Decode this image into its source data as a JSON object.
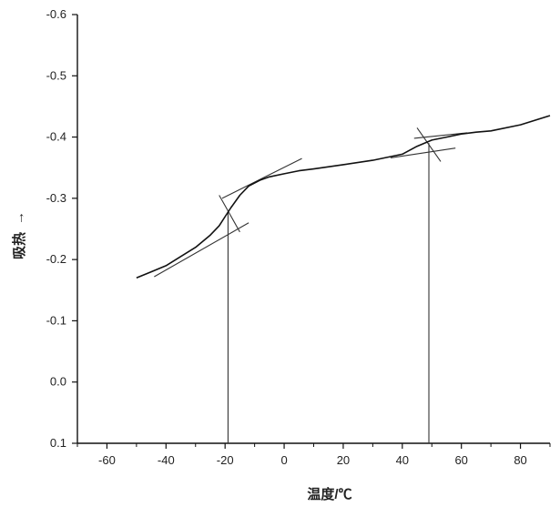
{
  "chart_data": {
    "type": "line",
    "title": "",
    "xlabel": "温度/℃",
    "ylabel": "吸热",
    "ylabel_arrow": "→",
    "xlim": [
      -70,
      90
    ],
    "ylim": [
      0.1,
      -0.6
    ],
    "y_axis_inverted": true,
    "grid": false,
    "legend": "none",
    "x_ticks": [
      "-60",
      "-40",
      "-20",
      "0",
      "20",
      "40",
      "60",
      "80"
    ],
    "y_ticks": [
      "-0.6",
      "-0.5",
      "-0.4",
      "-0.3",
      "-0.2",
      "-0.1",
      "0.0",
      "0.1"
    ],
    "series": [
      {
        "x": [
          -50,
          -45,
          -40,
          -35,
          -30,
          -25,
          -22,
          -20,
          -18,
          -15,
          -12,
          -8,
          -5,
          0,
          5,
          10,
          20,
          30,
          40,
          45,
          50,
          55,
          60,
          65,
          70,
          80,
          90
        ],
        "y": [
          -0.17,
          -0.18,
          -0.19,
          -0.205,
          -0.22,
          -0.24,
          -0.255,
          -0.27,
          -0.285,
          -0.305,
          -0.32,
          -0.33,
          -0.335,
          -0.34,
          -0.345,
          -0.348,
          -0.355,
          -0.362,
          -0.372,
          -0.385,
          -0.395,
          -0.4,
          -0.405,
          -0.408,
          -0.41,
          -0.42,
          -0.435
        ]
      }
    ],
    "tangent_lines": [
      {
        "x": [
          -44,
          -12
        ],
        "y": [
          -0.172,
          -0.26
        ]
      },
      {
        "x": [
          -21,
          6
        ],
        "y": [
          -0.3,
          -0.365
        ]
      },
      {
        "x": [
          -22,
          -15
        ],
        "y": [
          -0.305,
          -0.245
        ]
      },
      {
        "x": [
          36,
          58
        ],
        "y": [
          -0.366,
          -0.382
        ]
      },
      {
        "x": [
          44,
          62
        ],
        "y": [
          -0.398,
          -0.407
        ]
      },
      {
        "x": [
          45,
          53
        ],
        "y": [
          -0.415,
          -0.36
        ]
      }
    ],
    "markers": [
      {
        "x": -19,
        "y_from": 0.1,
        "y_to": -0.28
      },
      {
        "x": 49,
        "y_from": 0.1,
        "y_to": -0.39
      }
    ]
  }
}
